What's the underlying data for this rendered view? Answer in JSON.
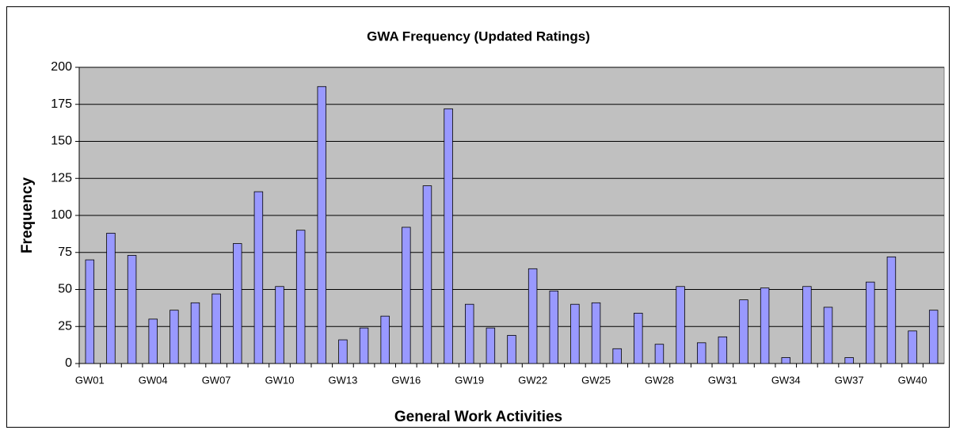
{
  "chart_data": {
    "type": "bar",
    "title": "GWA Frequency (Updated Ratings)",
    "x_label": "General Work Activities",
    "y_label": "Frequency",
    "categories": [
      "GW01",
      null,
      null,
      "GW04",
      null,
      null,
      "GW07",
      null,
      null,
      "GW10",
      null,
      null,
      "GW13",
      null,
      null,
      "GW16",
      null,
      null,
      "GW19",
      null,
      null,
      "GW22",
      null,
      null,
      "GW25",
      null,
      null,
      "GW28",
      null,
      null,
      "GW31",
      null,
      null,
      "GW34",
      null,
      null,
      "GW37",
      null,
      null,
      "GW40",
      null
    ],
    "values": [
      70,
      88,
      73,
      30,
      36,
      41,
      47,
      81,
      116,
      52,
      90,
      187,
      16,
      24,
      32,
      92,
      120,
      172,
      40,
      24,
      19,
      64,
      49,
      40,
      41,
      10,
      34,
      13,
      52,
      14,
      18,
      43,
      51,
      4,
      52,
      38,
      4,
      55,
      72,
      22,
      36
    ],
    "color": "#9999ff",
    "ylim": [
      0,
      200
    ],
    "yticks": [
      0,
      25,
      50,
      75,
      100,
      125,
      150,
      175,
      200
    ],
    "grid": true
  }
}
